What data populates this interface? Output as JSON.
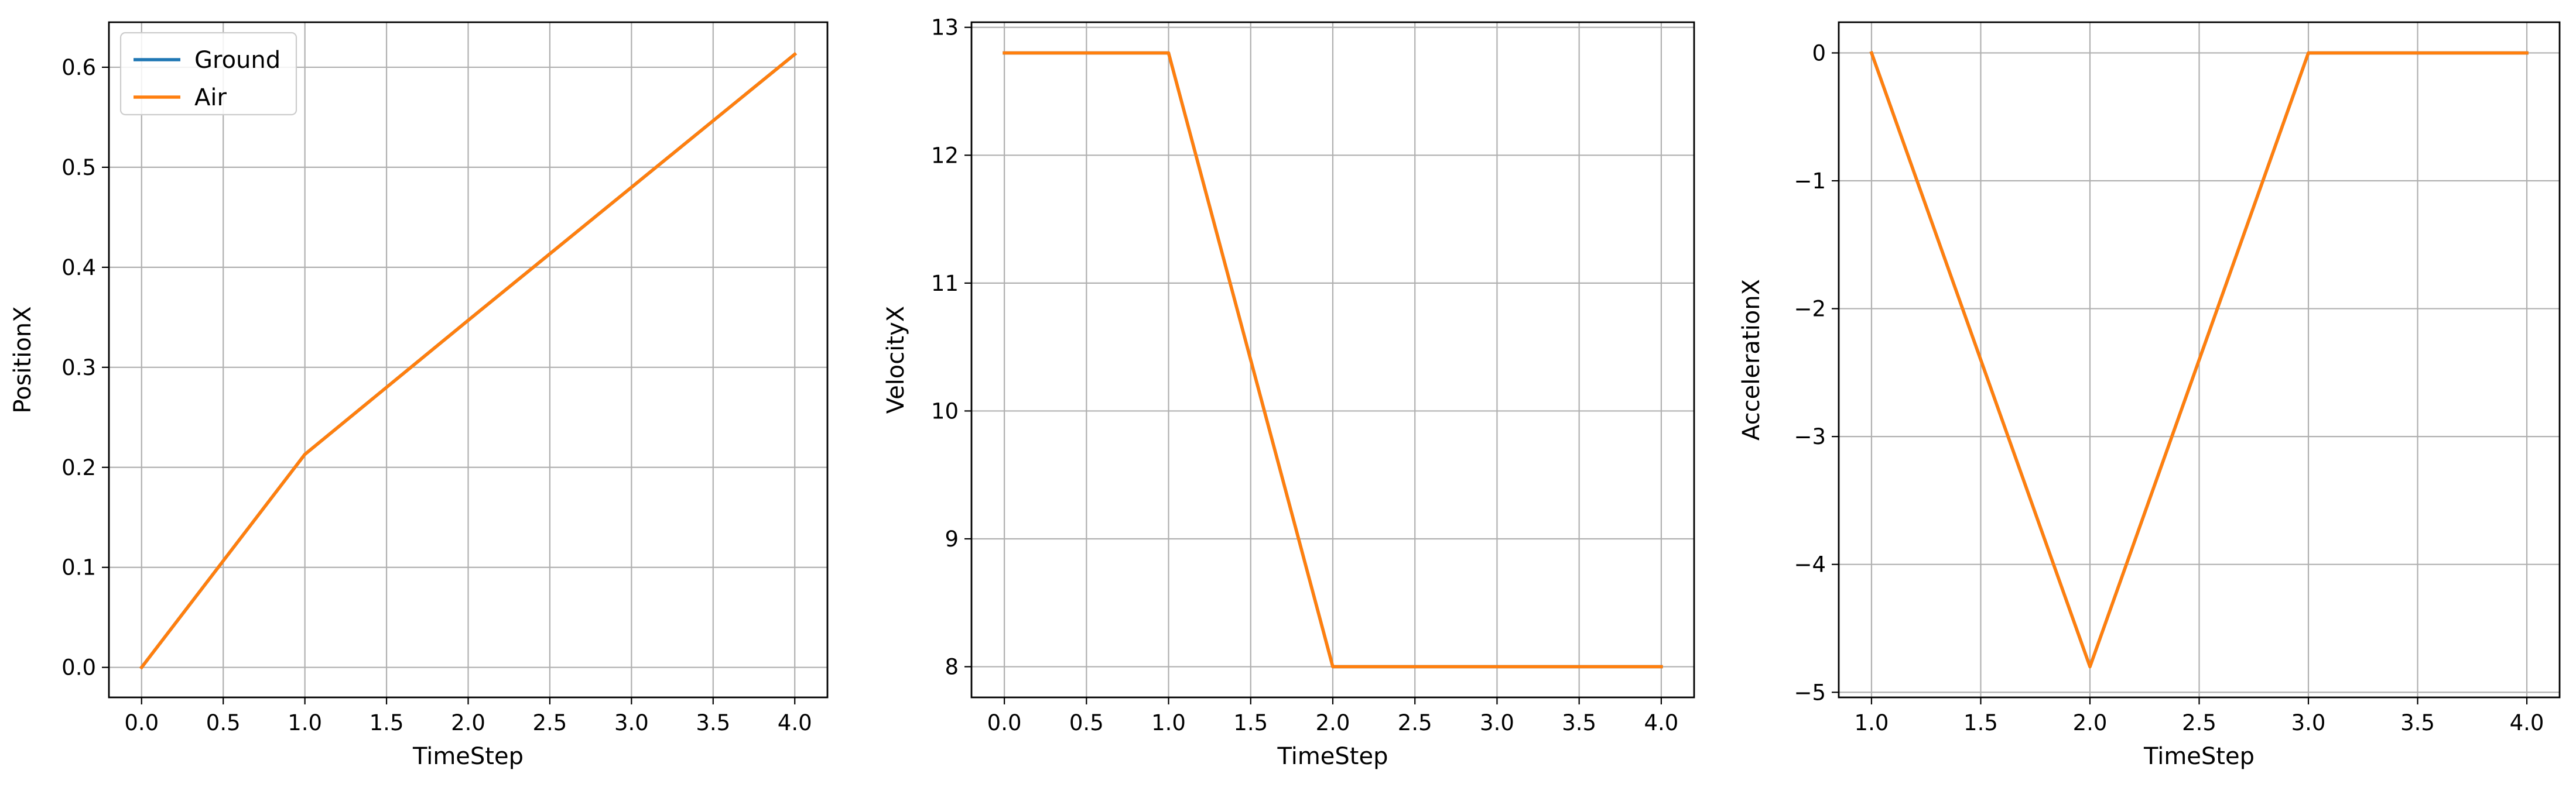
{
  "chart_data": [
    {
      "type": "line",
      "xlabel": "TimeStep",
      "ylabel": "PositionX",
      "xlim": [
        -0.2,
        4.2
      ],
      "ylim": [
        -0.03,
        0.645
      ],
      "xticks": [
        0.0,
        0.5,
        1.0,
        1.5,
        2.0,
        2.5,
        3.0,
        3.5,
        4.0
      ],
      "xtick_labels": [
        "0.0",
        "0.5",
        "1.0",
        "1.5",
        "2.0",
        "2.5",
        "3.0",
        "3.5",
        "4.0"
      ],
      "yticks": [
        0.0,
        0.1,
        0.2,
        0.3,
        0.4,
        0.5,
        0.6
      ],
      "ytick_labels": [
        "0.0",
        "0.1",
        "0.2",
        "0.3",
        "0.4",
        "0.5",
        "0.6"
      ],
      "grid": true,
      "legend": {
        "placement": "upper-left",
        "entries": [
          {
            "name": "Ground",
            "color": "#1f77b4"
          },
          {
            "name": "Air",
            "color": "#ff7f0e"
          }
        ]
      },
      "series": [
        {
          "name": "Ground",
          "color": "#1f77b4",
          "x": [
            0,
            1,
            2,
            3,
            4
          ],
          "y": [
            0.0,
            0.213,
            0.347,
            0.48,
            0.613
          ]
        },
        {
          "name": "Air",
          "color": "#ff7f0e",
          "x": [
            0,
            1,
            2,
            3,
            4
          ],
          "y": [
            0.0,
            0.213,
            0.347,
            0.48,
            0.613
          ]
        }
      ]
    },
    {
      "type": "line",
      "xlabel": "TimeStep",
      "ylabel": "VelocityX",
      "xlim": [
        -0.2,
        4.2
      ],
      "ylim": [
        7.76,
        13.04
      ],
      "xticks": [
        0.0,
        0.5,
        1.0,
        1.5,
        2.0,
        2.5,
        3.0,
        3.5,
        4.0
      ],
      "xtick_labels": [
        "0.0",
        "0.5",
        "1.0",
        "1.5",
        "2.0",
        "2.5",
        "3.0",
        "3.5",
        "4.0"
      ],
      "yticks": [
        8,
        9,
        10,
        11,
        12,
        13
      ],
      "ytick_labels": [
        "8",
        "9",
        "10",
        "11",
        "12",
        "13"
      ],
      "grid": true,
      "series": [
        {
          "name": "Ground",
          "color": "#1f77b4",
          "x": [
            0,
            1,
            2,
            3,
            4
          ],
          "y": [
            12.8,
            12.8,
            8.0,
            8.0,
            8.0
          ]
        },
        {
          "name": "Air",
          "color": "#ff7f0e",
          "x": [
            0,
            1,
            2,
            3,
            4
          ],
          "y": [
            12.8,
            12.8,
            8.0,
            8.0,
            8.0
          ]
        }
      ]
    },
    {
      "type": "line",
      "xlabel": "TimeStep",
      "ylabel": "AccelerationX",
      "xlim": [
        0.85,
        4.15
      ],
      "ylim": [
        -5.04,
        0.24
      ],
      "xticks": [
        1.0,
        1.5,
        2.0,
        2.5,
        3.0,
        3.5,
        4.0
      ],
      "xtick_labels": [
        "1.0",
        "1.5",
        "2.0",
        "2.5",
        "3.0",
        "3.5",
        "4.0"
      ],
      "yticks": [
        -5,
        -4,
        -3,
        -2,
        -1,
        0
      ],
      "ytick_labels": [
        "−5",
        "−4",
        "−3",
        "−2",
        "−1",
        "0"
      ],
      "grid": true,
      "series": [
        {
          "name": "Ground",
          "color": "#1f77b4",
          "x": [
            1,
            2,
            3,
            4
          ],
          "y": [
            0.0,
            -4.8,
            0.0,
            0.0
          ]
        },
        {
          "name": "Air",
          "color": "#ff7f0e",
          "x": [
            1,
            2,
            3,
            4
          ],
          "y": [
            0.0,
            -4.8,
            0.0,
            0.0
          ]
        }
      ]
    }
  ]
}
